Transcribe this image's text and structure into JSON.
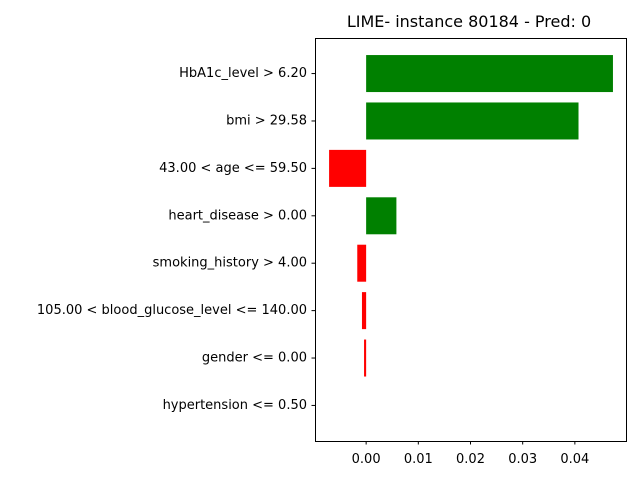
{
  "chart_data": {
    "type": "bar",
    "orientation": "horizontal",
    "title": "LIME- instance 80184 - Pred: 0",
    "xlabel": "",
    "ylabel": "",
    "categories": [
      "HbA1c_level > 6.20",
      "bmi > 29.58",
      "43.00 < age <= 59.50",
      "heart_disease > 0.00",
      "smoking_history > 4.00",
      "105.00 < blood_glucose_level <= 140.00",
      "gender <= 0.00",
      "hypertension <= 0.50"
    ],
    "values": [
      0.0473,
      0.0407,
      -0.0071,
      0.0058,
      -0.0017,
      -0.0008,
      -0.0004,
      0.0
    ],
    "xlim": [
      -0.0098,
      0.0498
    ],
    "xticks": [
      0.0,
      0.01,
      0.02,
      0.03,
      0.04
    ],
    "xtick_labels": [
      "0.00",
      "0.01",
      "0.02",
      "0.03",
      "0.04"
    ],
    "positive_color": "#008000",
    "negative_color": "#ff0000",
    "grid": false,
    "legend": "none"
  }
}
